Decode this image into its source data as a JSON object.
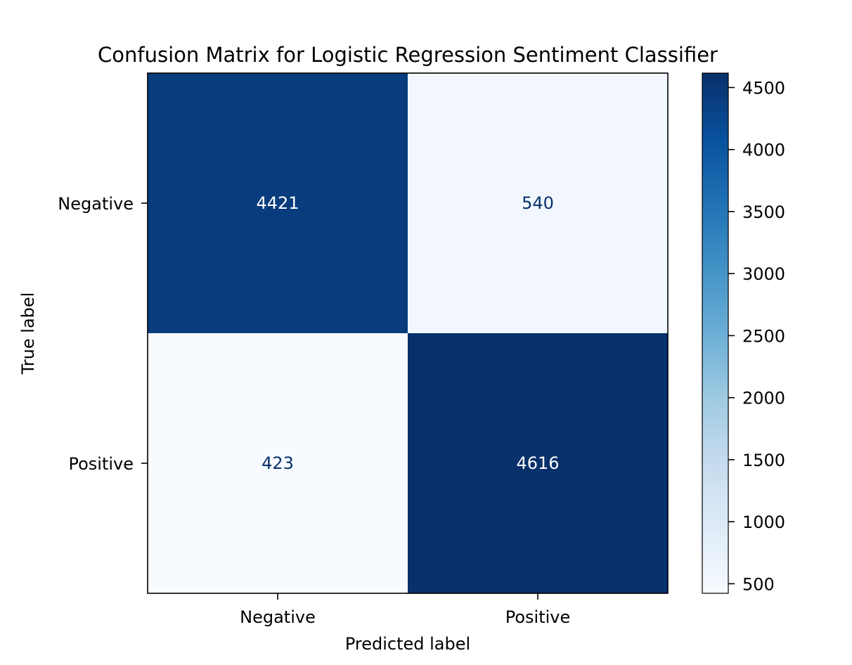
{
  "chart_data": {
    "type": "heatmap",
    "title": "Confusion Matrix for Logistic Regression Sentiment Classifier",
    "xlabel": "Predicted label",
    "ylabel": "True label",
    "x_categories": [
      "Negative",
      "Positive"
    ],
    "y_categories": [
      "Negative",
      "Positive"
    ],
    "values": [
      [
        4421,
        540
      ],
      [
        423,
        4616
      ]
    ],
    "colormap": "Blues",
    "colorbar": {
      "vmin": 423,
      "vmax": 4616,
      "ticks": [
        500,
        1000,
        1500,
        2000,
        2500,
        3000,
        3500,
        4000,
        4500
      ]
    },
    "grid": false
  }
}
